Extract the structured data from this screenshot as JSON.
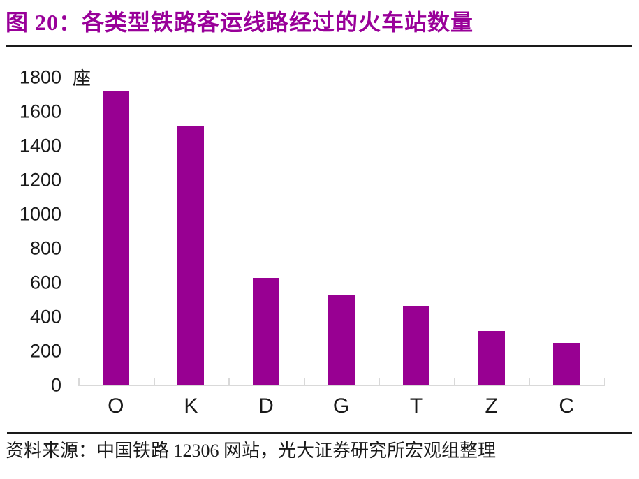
{
  "title": {
    "text": "图 20：各类型铁路客运线路经过的火车站数量"
  },
  "chart_data": {
    "type": "bar",
    "title": "各类型铁路客运线路经过的火车站数量",
    "categories": [
      "O",
      "K",
      "D",
      "G",
      "T",
      "Z",
      "C"
    ],
    "values": [
      1720,
      1520,
      630,
      525,
      465,
      320,
      250
    ],
    "unit_label": "座",
    "xlabel": "",
    "ylabel": "座",
    "ylim": [
      0,
      1800
    ],
    "y_ticks": [
      0,
      200,
      400,
      600,
      800,
      1000,
      1200,
      1400,
      1600,
      1800
    ],
    "grid": false,
    "legend": false,
    "bar_color": "#980092",
    "axis_color": "#d9d9d9"
  },
  "footer": {
    "source_text": "资料来源：中国铁路 12306 网站，光大证券研究所宏观组整理"
  },
  "colors": {
    "accent": "#990099",
    "bar": "#980092",
    "axis": "#d9d9d9",
    "rule": "#1a1a1a",
    "text": "#1a1a1a"
  }
}
